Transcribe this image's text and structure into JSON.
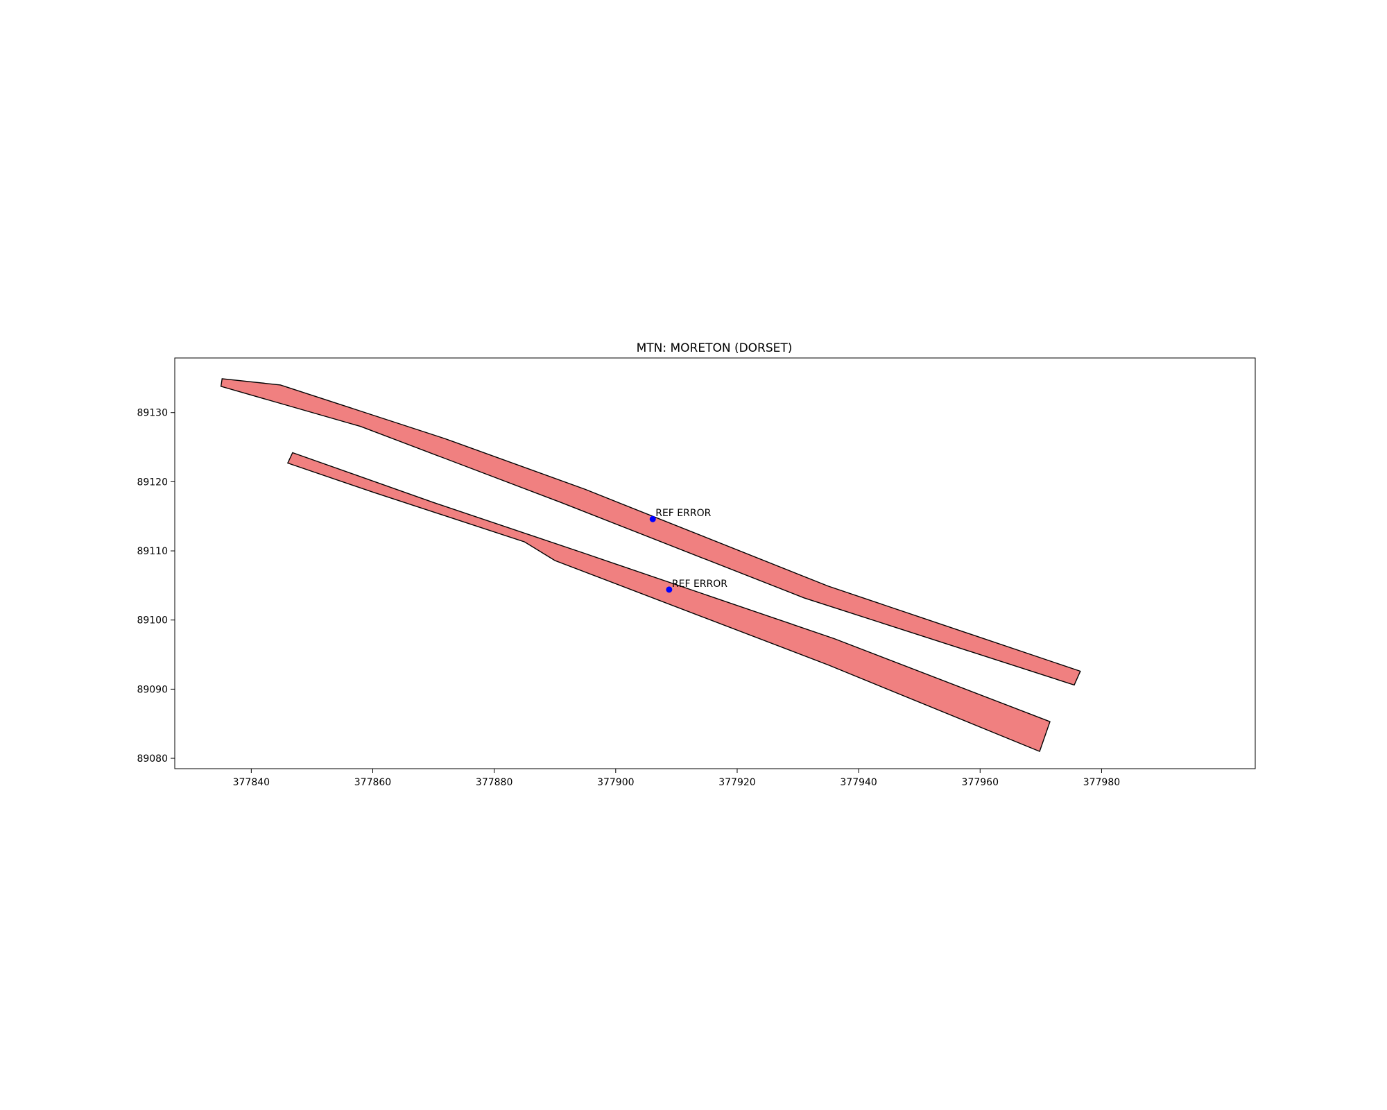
{
  "chart_data": {
    "type": "map",
    "title": "MTN: MORETON (DORSET)",
    "xlabel": "",
    "ylabel": "",
    "xlim": [
      377827.4,
      378005.3
    ],
    "ylim": [
      89078.5,
      89137.9
    ],
    "xticks": [
      377840,
      377860,
      377880,
      377900,
      377920,
      377940,
      377960,
      377980
    ],
    "yticks": [
      89080,
      89090,
      89100,
      89110,
      89120,
      89130
    ],
    "grid": false,
    "legend": "none",
    "polygon_fill": "#f08080",
    "polygon_edge": "#000000",
    "marker_color": "#0000ff",
    "polygons": [
      {
        "points": [
          [
            377835.2,
            89134.9
          ],
          [
            377844.8,
            89134.0
          ],
          [
            377872.0,
            89126.2
          ],
          [
            377895.0,
            89118.9
          ],
          [
            377935.0,
            89104.9
          ],
          [
            377976.5,
            89092.6
          ],
          [
            377975.5,
            89090.6
          ],
          [
            377931.0,
            89103.2
          ],
          [
            377891.0,
            89117.0
          ],
          [
            377858.0,
            89128.0
          ],
          [
            377835.0,
            89133.8
          ]
        ]
      },
      {
        "points": [
          [
            377846.8,
            89124.2
          ],
          [
            377870.0,
            89117.0
          ],
          [
            377895.0,
            89109.6
          ],
          [
            377936.0,
            89097.3
          ],
          [
            377971.5,
            89085.3
          ],
          [
            377969.8,
            89081.0
          ],
          [
            377935.0,
            89093.5
          ],
          [
            377890.0,
            89108.6
          ],
          [
            377885.0,
            89111.3
          ],
          [
            377860.0,
            89118.5
          ],
          [
            377846.0,
            89122.7
          ]
        ]
      }
    ],
    "points": [
      {
        "x": 377906.1,
        "y": 89114.6,
        "label": "REF ERROR"
      },
      {
        "x": 377908.8,
        "y": 89104.4,
        "label": "REF ERROR"
      }
    ]
  }
}
